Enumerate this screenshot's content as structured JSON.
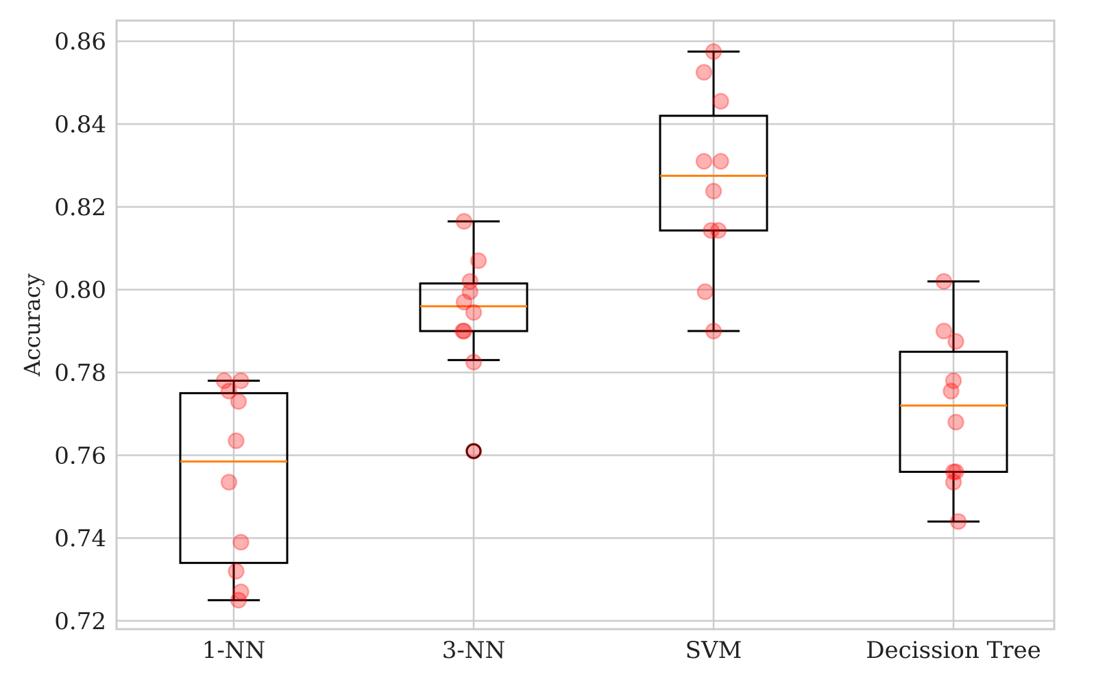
{
  "chart_data": {
    "type": "box",
    "ylabel": "Accuracy",
    "xlabel": "",
    "title": "",
    "ylim": [
      0.718,
      0.865
    ],
    "yticks": [
      0.72,
      0.74,
      0.76,
      0.78,
      0.8,
      0.82,
      0.84,
      0.86
    ],
    "ytick_labels": [
      "0.72",
      "0.74",
      "0.76",
      "0.78",
      "0.80",
      "0.82",
      "0.84",
      "0.86"
    ],
    "categories": [
      "1-NN",
      "3-NN",
      "SVM",
      "Decission Tree"
    ],
    "grid": true,
    "colors": {
      "box": "#000000",
      "median": "#ff7f0e",
      "points": "#ff0000",
      "flier": "#000000",
      "grid": "#cccccc"
    },
    "boxes": [
      {
        "name": "1-NN",
        "whisker_low": 0.725,
        "q1": 0.734,
        "median": 0.7585,
        "q3": 0.775,
        "whisker_high": 0.778,
        "fliers": []
      },
      {
        "name": "3-NN",
        "whisker_low": 0.783,
        "q1": 0.79,
        "median": 0.796,
        "q3": 0.8015,
        "whisker_high": 0.8165,
        "fliers": [
          0.761
        ]
      },
      {
        "name": "SVM",
        "whisker_low": 0.79,
        "q1": 0.8143,
        "median": 0.8275,
        "q3": 0.842,
        "whisker_high": 0.8575,
        "fliers": []
      },
      {
        "name": "Decission Tree",
        "whisker_low": 0.744,
        "q1": 0.756,
        "median": 0.772,
        "q3": 0.785,
        "whisker_high": 0.802,
        "fliers": []
      }
    ],
    "points": [
      {
        "category": "1-NN",
        "values": [
          0.778,
          0.778,
          0.7755,
          0.773,
          0.7635,
          0.7535,
          0.739,
          0.732,
          0.727,
          0.725
        ],
        "jitter": [
          -0.04,
          0.03,
          -0.02,
          0.02,
          0.01,
          -0.02,
          0.03,
          0.01,
          0.03,
          0.02
        ]
      },
      {
        "category": "3-NN",
        "values": [
          0.8165,
          0.807,
          0.802,
          0.7995,
          0.797,
          0.7945,
          0.79,
          0.79,
          0.7825,
          0.761
        ],
        "jitter": [
          -0.04,
          0.02,
          -0.015,
          -0.015,
          -0.04,
          0.0,
          -0.04,
          -0.045,
          0.0,
          0.0
        ]
      },
      {
        "category": "SVM",
        "values": [
          0.8575,
          0.8525,
          0.8455,
          0.831,
          0.831,
          0.8238,
          0.8143,
          0.8143,
          0.7995,
          0.79
        ],
        "jitter": [
          0.0,
          -0.04,
          0.03,
          -0.04,
          0.03,
          0.0,
          -0.01,
          0.02,
          -0.035,
          0.0
        ]
      },
      {
        "category": "Decission Tree",
        "values": [
          0.802,
          0.79,
          0.7875,
          0.778,
          0.7755,
          0.768,
          0.756,
          0.756,
          0.7535,
          0.744
        ],
        "jitter": [
          -0.04,
          -0.04,
          0.01,
          0.0,
          -0.01,
          0.01,
          0.0,
          0.01,
          0.0,
          0.02
        ]
      }
    ]
  }
}
